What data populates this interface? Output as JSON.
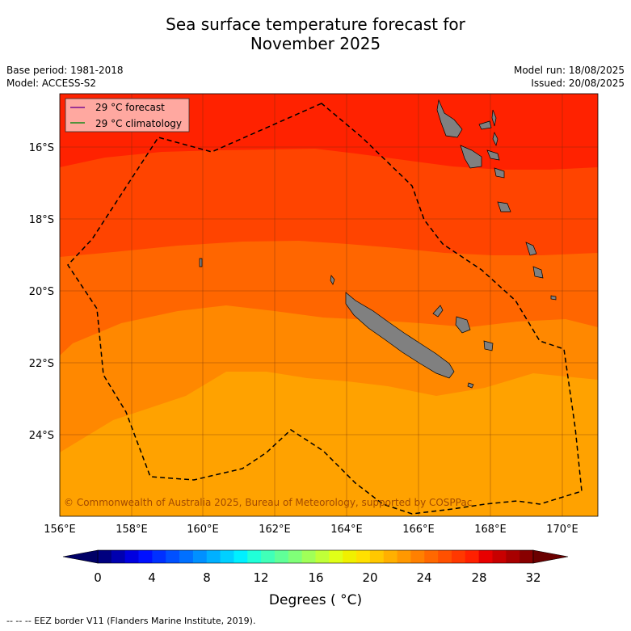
{
  "title": {
    "line1": "Sea surface temperature forecast for",
    "line2": "November 2025"
  },
  "meta": {
    "base_period": "Base period: 1981-2018",
    "model": "Model: ACCESS-S2",
    "model_run": "Model run: 18/08/2025",
    "issued": "Issued: 20/08/2025"
  },
  "map": {
    "lat_labels": [
      "16°S",
      "18°S",
      "20°S",
      "22°S",
      "24°S"
    ],
    "lon_labels": [
      "156°E",
      "158°E",
      "160°E",
      "162°E",
      "164°E",
      "166°E",
      "168°E",
      "170°E"
    ],
    "legend": {
      "forecast_label": "29 °C  forecast",
      "forecast_color": "#7b0d8f",
      "climatology_label": "29 °C  climatology",
      "climatology_color": "#1a8a1a"
    },
    "copyright": "© Commonwealth of Australia 2025, Bureau of Meteorology, supported by COSPPac",
    "land_color": "#808080",
    "sst_colors": {
      "c29_30": "#ff2200",
      "c28_29": "#ff4400",
      "c27_28": "#ff6600",
      "c26_27": "#ff8800",
      "c25_26": "#ffa200"
    }
  },
  "colorbar": {
    "ticks": [
      "0",
      "4",
      "8",
      "12",
      "16",
      "20",
      "24",
      "28",
      "32"
    ],
    "label": "Degrees ( °C)",
    "colors": [
      "#00007f",
      "#0000b0",
      "#0000e0",
      "#0010ff",
      "#0030ff",
      "#0050ff",
      "#0070ff",
      "#0090ff",
      "#00b0ff",
      "#00d0ff",
      "#00f0ff",
      "#20ffd8",
      "#40ffb8",
      "#60ff98",
      "#80ff78",
      "#a0ff58",
      "#c0ff38",
      "#e0ff18",
      "#f0f000",
      "#ffe000",
      "#ffc800",
      "#ffb000",
      "#ff9800",
      "#ff8000",
      "#ff6800",
      "#ff5000",
      "#ff3800",
      "#ff2000",
      "#e80000",
      "#c80000",
      "#a80000",
      "#880000"
    ],
    "under_color": "#000066",
    "over_color": "#6a0000"
  },
  "footer": "--  --  -- EEZ border V11 (Flanders Marine Institute, 2019)."
}
